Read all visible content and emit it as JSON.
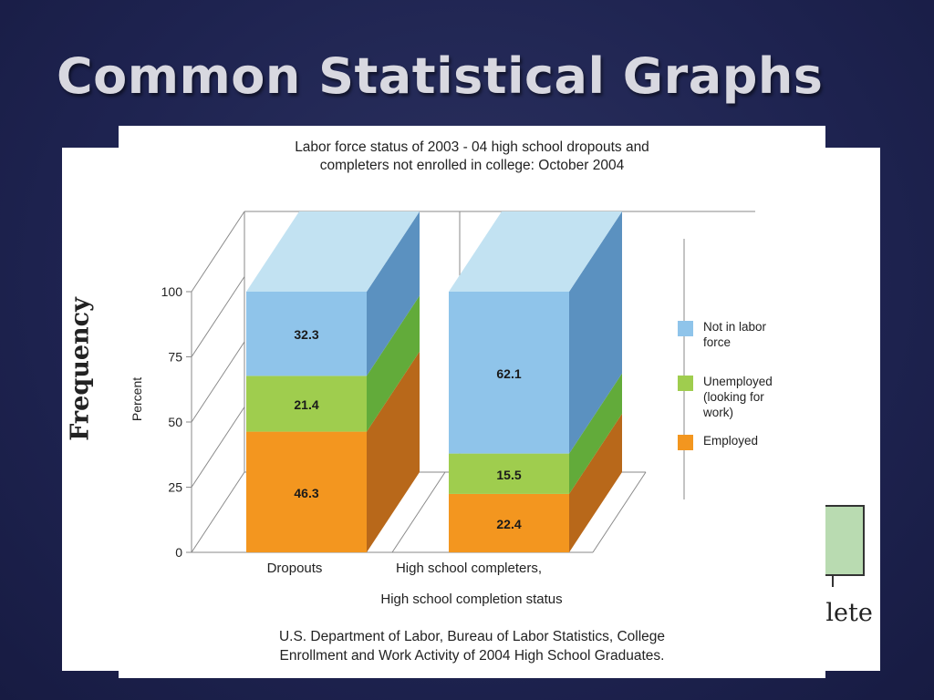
{
  "slide": {
    "title": "Common Statistical Graphs"
  },
  "background_figure": {
    "ylabel": "Frequency",
    "xlabel_fragment": "nlete",
    "bar_color": "#b9dbb1"
  },
  "chart_data": {
    "type": "bar",
    "stacked": true,
    "style": "3d",
    "title_lines": [
      "Labor force status of 2003 - 04 high school dropouts and",
      "completers not enrolled in college: October 2004"
    ],
    "xlabel": "High school completion status",
    "ylabel": "Percent",
    "ylim": [
      0,
      100
    ],
    "yticks": [
      "0",
      "25",
      "50",
      "75",
      "100"
    ],
    "categories": [
      "Dropouts",
      "High school completers,"
    ],
    "series": [
      {
        "name": "Employed",
        "values": [
          46.3,
          22.4
        ],
        "labels": [
          "46.3",
          "22.4"
        ],
        "color": "#f3961f",
        "side_color": "#b8681a"
      },
      {
        "name": "Unemployed (looking for work)",
        "values": [
          21.4,
          15.5
        ],
        "labels": [
          "21.4",
          "15.5"
        ],
        "color": "#9fcd4e",
        "side_color": "#62ab3a"
      },
      {
        "name": "Not in labor force",
        "values": [
          32.3,
          62.1
        ],
        "labels": [
          "32.3",
          "62.1"
        ],
        "color": "#8fc4ea",
        "side_color": "#5b91c0",
        "top_color": "#c2e2f2"
      }
    ],
    "legend_position": "right",
    "legend": [
      {
        "lines": [
          "Not in labor",
          "force"
        ],
        "color": "#8fc4ea"
      },
      {
        "lines": [
          "Unemployed",
          "(looking for",
          "work)"
        ],
        "color": "#9fcd4e"
      },
      {
        "lines": [
          "Employed"
        ],
        "color": "#f3961f"
      }
    ],
    "source_lines": [
      "U.S. Department of Labor, Bureau of Labor Statistics, College",
      "Enrollment and Work Activity of 2004 High School Graduates."
    ]
  }
}
